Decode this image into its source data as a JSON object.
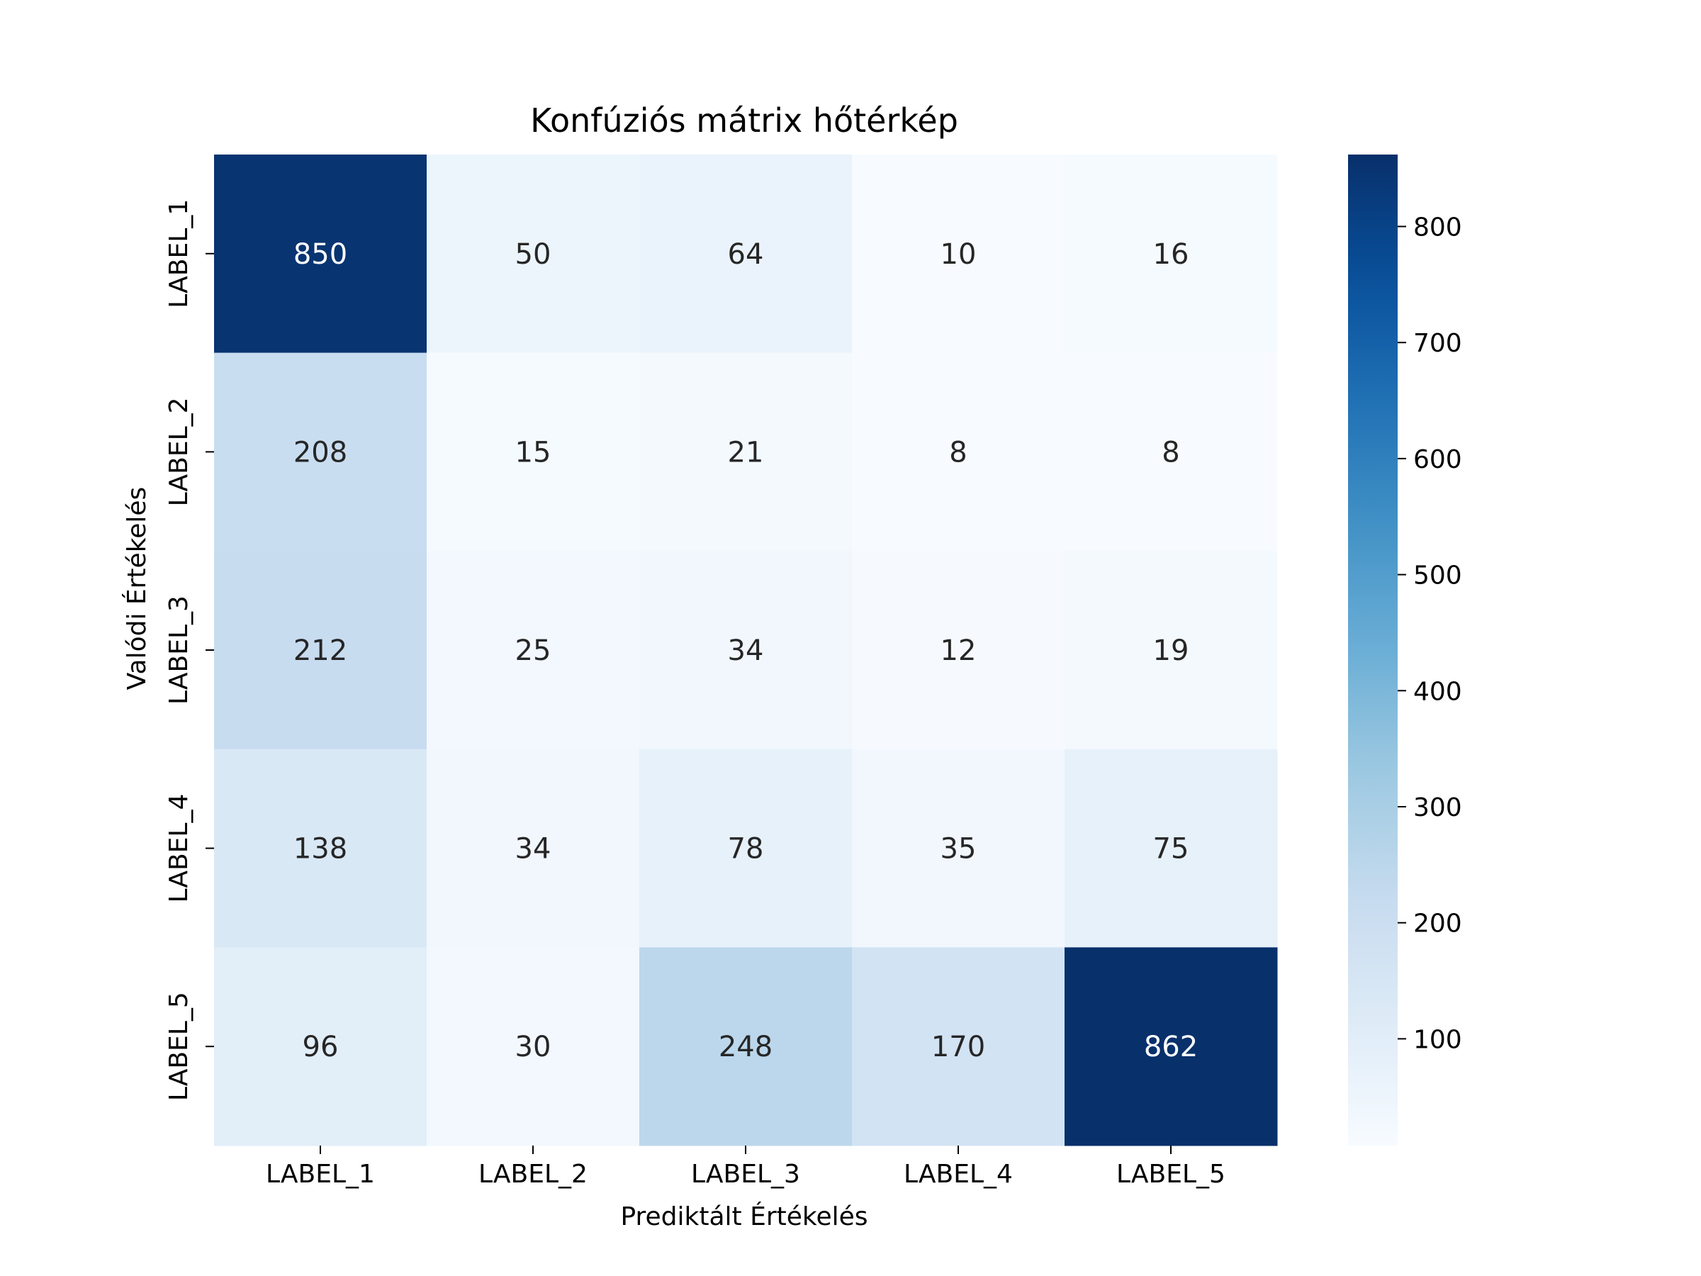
{
  "chart_data": {
    "type": "heatmap",
    "title": "Konfúziós mátrix hőtérkép",
    "xlabel": "Prediktált Értékelés",
    "ylabel": "Valódi Értékelés",
    "x_categories": [
      "LABEL_1",
      "LABEL_2",
      "LABEL_3",
      "LABEL_4",
      "LABEL_5"
    ],
    "y_categories": [
      "LABEL_1",
      "LABEL_2",
      "LABEL_3",
      "LABEL_4",
      "LABEL_5"
    ],
    "values": [
      [
        850,
        50,
        64,
        10,
        16
      ],
      [
        208,
        15,
        21,
        8,
        8
      ],
      [
        212,
        25,
        34,
        12,
        19
      ],
      [
        138,
        34,
        78,
        35,
        75
      ],
      [
        96,
        30,
        248,
        170,
        862
      ]
    ],
    "colormap": "Blues",
    "colorbar": {
      "ticks": [
        100,
        200,
        300,
        400,
        500,
        600,
        700,
        800
      ],
      "range": [
        8,
        862
      ]
    },
    "annotation_colors": {
      "dark_text": "#262626",
      "light_text": "#ffffff"
    },
    "grid": false,
    "legend": "colorbar-right"
  }
}
